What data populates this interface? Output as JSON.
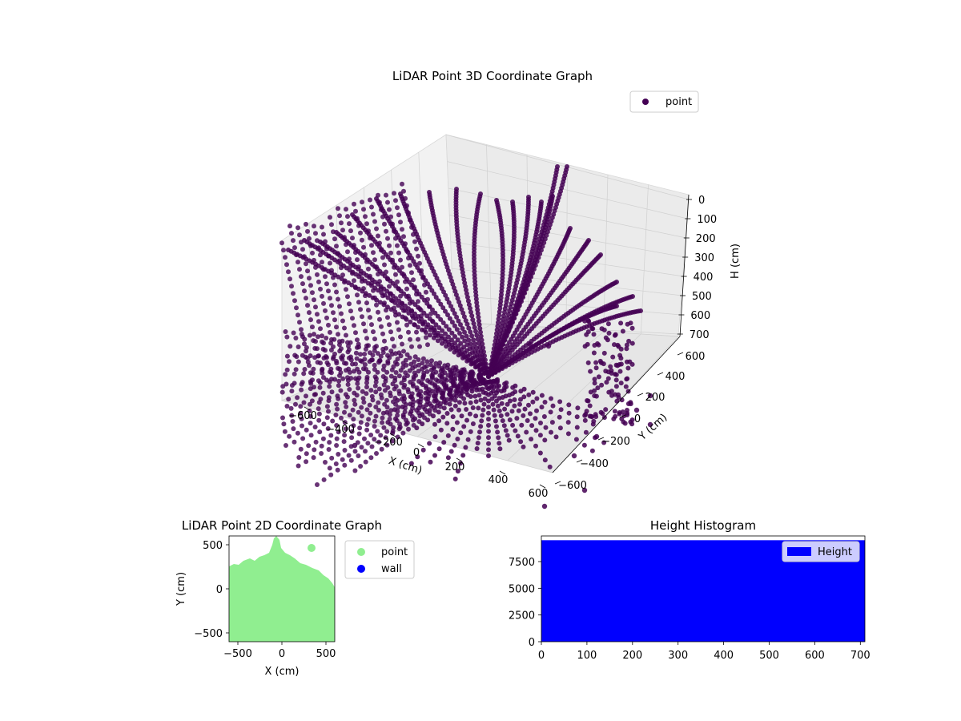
{
  "chart_data": [
    {
      "type": "scatter",
      "title": "LiDAR Point 3D Coordinate Graph",
      "xlabel": "X (cm)",
      "ylabel": "Y (cm)",
      "zlabel": "H (cm)",
      "xticks": [
        "−600",
        "−400",
        "−200",
        "0",
        "200",
        "400",
        "600"
      ],
      "yticks": [
        "−600",
        "−400",
        "−200",
        "0",
        "200",
        "400",
        "600"
      ],
      "zticks": [
        "0",
        "100",
        "200",
        "300",
        "400",
        "500",
        "600",
        "700"
      ],
      "xlim": [
        -600,
        600
      ],
      "ylim": [
        -600,
        600
      ],
      "zlim": [
        700,
        0
      ],
      "z_axis_inverted": true,
      "legend": {
        "position": "upper-right",
        "entries": [
          {
            "label": "point",
            "color": "#440154"
          }
        ]
      },
      "series": [
        {
          "name": "point",
          "color": "#440154",
          "description": "dense radial sweeps of LiDAR points"
        }
      ]
    },
    {
      "type": "scatter",
      "title": "LiDAR Point 2D Coordinate Graph",
      "xlabel": "X (cm)",
      "ylabel": "Y (cm)",
      "xticks": [
        "−500",
        "0",
        "500"
      ],
      "yticks": [
        "−500",
        "0",
        "500"
      ],
      "xlim": [
        -600,
        600
      ],
      "ylim": [
        -600,
        600
      ],
      "legend": {
        "position": "outside-right",
        "entries": [
          {
            "label": "point",
            "color": "#90ee90"
          },
          {
            "label": "wall",
            "color": "#0000ff"
          }
        ]
      },
      "series": [
        {
          "name": "point",
          "color": "#90ee90"
        },
        {
          "name": "wall",
          "color": "#0000ff"
        }
      ]
    },
    {
      "type": "bar",
      "title": "Height Histogram",
      "xticks": [
        "0",
        "100",
        "200",
        "300",
        "400",
        "500",
        "600",
        "700"
      ],
      "yticks": [
        "0",
        "2500",
        "5000",
        "7500"
      ],
      "xlim": [
        0,
        710
      ],
      "ylim": [
        0,
        9900
      ],
      "legend": {
        "position": "upper-right",
        "entries": [
          {
            "label": "Height",
            "color": "#0000ff"
          }
        ]
      },
      "series": [
        {
          "name": "Height",
          "color": "#0000ff",
          "bin_range": [
            0,
            710
          ],
          "count": 9500
        }
      ]
    }
  ]
}
